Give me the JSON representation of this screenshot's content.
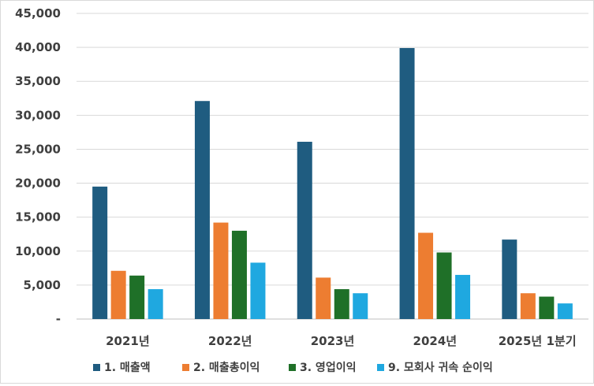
{
  "chart_data": {
    "type": "bar",
    "categories": [
      "2021년",
      "2022년",
      "2023년",
      "2024년",
      "2025년 1분기"
    ],
    "series": [
      {
        "name": "1. 매출액",
        "values": [
          19500,
          32100,
          26100,
          39900,
          11700
        ],
        "color": "#1f5c80"
      },
      {
        "name": "2. 매출총이익",
        "values": [
          7100,
          14200,
          6100,
          12700,
          3800
        ],
        "color": "#ed7d31"
      },
      {
        "name": "3. 영업이익",
        "values": [
          6400,
          13000,
          4400,
          9800,
          3300
        ],
        "color": "#1f7028"
      },
      {
        "name": "9. 모회사 귀속 순이익",
        "values": [
          4400,
          8300,
          3800,
          6500,
          2300
        ],
        "color": "#1fa8e0"
      }
    ],
    "y_ticks": [
      "-",
      "5,000",
      "10,000",
      "15,000",
      "20,000",
      "25,000",
      "30,000",
      "35,000",
      "40,000",
      "45,000"
    ],
    "ylim": [
      0,
      45000
    ],
    "grid": true,
    "legend_position": "bottom",
    "title": "",
    "xlabel": "",
    "ylabel": ""
  }
}
